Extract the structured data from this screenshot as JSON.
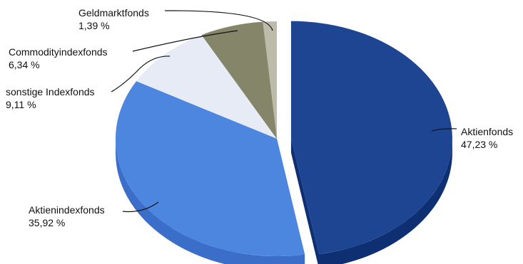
{
  "chart_data": {
    "type": "pie",
    "title": "",
    "slices": [
      {
        "label": "Aktienfonds",
        "value": 47.23,
        "value_text": "47,23 %",
        "color": "#1d4591",
        "side_color": "#0f2f73",
        "exploded": true
      },
      {
        "label": "Aktienindexfonds",
        "value": 35.92,
        "value_text": "35,92 %",
        "color": "#4d86df",
        "side_color": "#3a6ec8",
        "exploded": false
      },
      {
        "label": "sonstige Indexfonds",
        "value": 9.11,
        "value_text": "9,11 %",
        "color": "#e6ebf5",
        "side_color": "#c8ced8",
        "exploded": false
      },
      {
        "label": "Commodityindexfonds",
        "value": 6.34,
        "value_text": "6,34 %",
        "color": "#848569",
        "side_color": "#6a6b53",
        "exploded": false
      },
      {
        "label": "Geldmarktfonds",
        "value": 1.39,
        "value_text": "1,39 %",
        "color": "#bdbcab",
        "side_color": "#9d9c8c",
        "exploded": false
      }
    ],
    "style": "3d-exploded"
  }
}
